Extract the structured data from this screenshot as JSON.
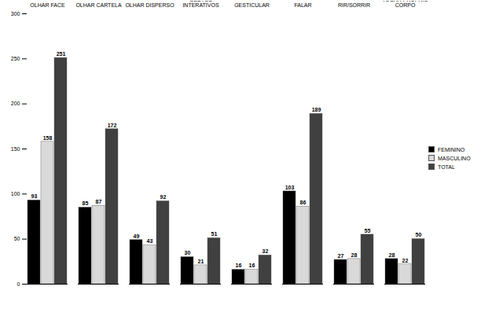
{
  "chart_data": {
    "type": "bar",
    "categories": [
      "OLHAR FACE",
      "OLHAR CARTELA",
      "OLHAR DISPERSO",
      "GESTOS INTERATIVOS",
      "GESTICULAR",
      "FALAR",
      "RIR/SORRIR",
      "TOCAR PRÓPRIO CORPO"
    ],
    "series": [
      {
        "name": "FEMININO",
        "color": "#000000",
        "values": [
          93,
          85,
          49,
          30,
          16,
          103,
          27,
          28
        ]
      },
      {
        "name": "MASCULINO",
        "color": "#d9d9d9",
        "values": [
          158,
          87,
          43,
          21,
          16,
          86,
          28,
          22
        ]
      },
      {
        "name": "TOTAL",
        "color": "#404040",
        "values": [
          251,
          172,
          92,
          51,
          32,
          189,
          55,
          50
        ]
      }
    ],
    "ylim": [
      0,
      300
    ],
    "yticks": [
      0,
      50,
      100,
      150,
      200,
      250,
      300
    ],
    "grid": false,
    "legend": "right",
    "data_labels": true
  }
}
